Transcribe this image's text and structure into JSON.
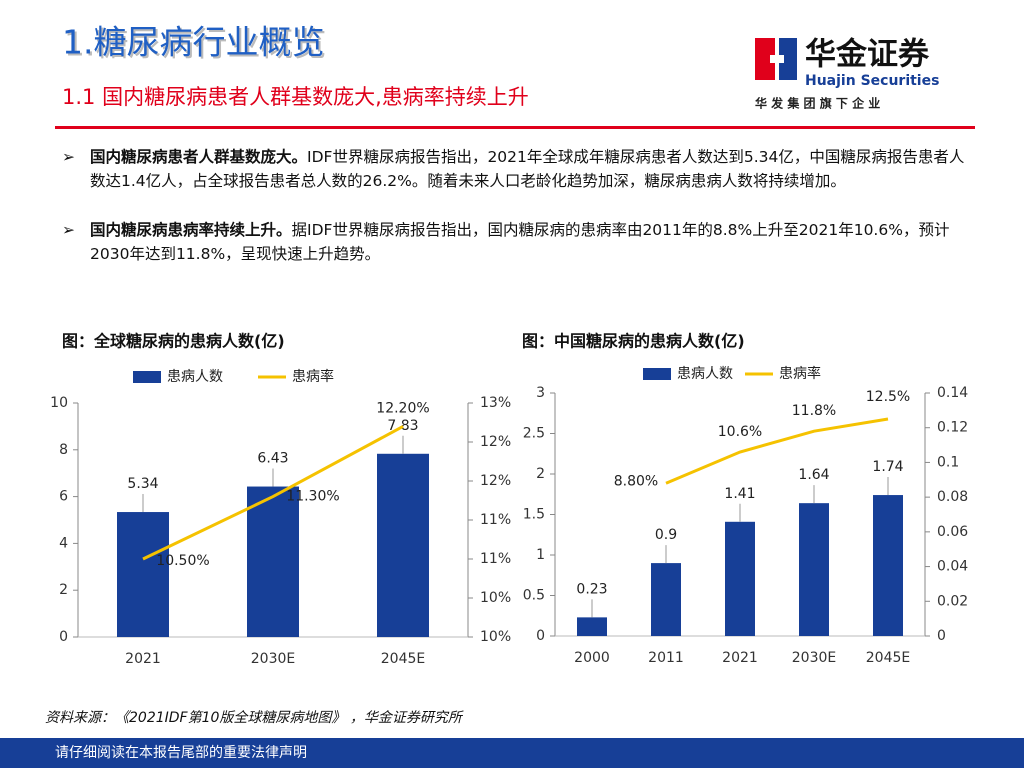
{
  "header": {
    "title": "1.糖尿病行业概览",
    "subtitle": "1.1 国内糖尿病患者人群基数庞大,患病率持续上升",
    "logo_name": "华金证券",
    "logo_en": "Huajin Securities",
    "logo_tagline": "华 发 集 团 旗 下 企 业"
  },
  "bullets": [
    {
      "lead": "国内糖尿病患者人群基数庞大。",
      "text": "IDF世界糖尿病报告指出，2021年全球成年糖尿病患者人数达到5.34亿，中国糖尿病报告患者人数达1.4亿人，占全球报告患者总人数的26.2%。随着未来人口老龄化趋势加深，糖尿病患病人数将持续增加。"
    },
    {
      "lead": "国内糖尿病患病率持续上升。",
      "text": "据IDF世界糖尿病报告指出，国内糖尿病的患病率由2011年的8.8%上升至2021年10.6%，预计2030年达到11.8%，呈现快速上升趋势。"
    }
  ],
  "chart_data": [
    {
      "type": "bar",
      "title": "图：全球糖尿病的患病人数(亿)",
      "categories": [
        "2021",
        "2030E",
        "2045E"
      ],
      "series": [
        {
          "name": "患病人数",
          "type": "bar",
          "color": "#173f97",
          "values": [
            5.34,
            6.43,
            7.83
          ]
        },
        {
          "name": "患病率",
          "type": "line",
          "axis": "y2",
          "color": "#f5c200",
          "values": [
            10.5,
            11.3,
            12.2
          ],
          "value_labels": [
            "10.50%",
            "11.30%",
            "12.20%"
          ]
        }
      ],
      "ylim": [
        0,
        10
      ],
      "yticks": [
        0,
        2,
        4,
        6,
        8,
        10
      ],
      "y2lim": [
        9.5,
        12.5
      ],
      "y2ticks": [
        {
          "value": 9.5,
          "label": "10%"
        },
        {
          "value": 10,
          "label": "10%"
        },
        {
          "value": 10.5,
          "label": "11%"
        },
        {
          "value": 11,
          "label": "11%"
        },
        {
          "value": 11.5,
          "label": "12%"
        },
        {
          "value": 12,
          "label": "12%"
        },
        {
          "value": 12.5,
          "label": "13%"
        }
      ]
    },
    {
      "type": "bar",
      "title": "图：中国糖尿病的患病人数(亿)",
      "categories": [
        "2000",
        "2011",
        "2021",
        "2030E",
        "2045E"
      ],
      "series": [
        {
          "name": "患病人数",
          "type": "bar",
          "color": "#173f97",
          "values": [
            0.23,
            0.9,
            1.41,
            1.64,
            1.74
          ]
        },
        {
          "name": "患病率",
          "type": "line",
          "axis": "y2",
          "color": "#f5c200",
          "values": [
            null,
            0.088,
            0.106,
            0.118,
            0.125
          ],
          "value_labels": [
            null,
            "8.80%",
            "10.6%",
            "11.8%",
            "12.5%"
          ]
        }
      ],
      "ylim": [
        0,
        3
      ],
      "yticks": [
        0,
        0.5,
        1,
        1.5,
        2,
        2.5,
        3
      ],
      "y2lim": [
        0,
        0.14
      ],
      "y2ticks": [
        0,
        0.02,
        0.04,
        0.06,
        0.08,
        0.1,
        0.12,
        0.14
      ]
    }
  ],
  "source": "资料来源：《2021IDF第10版全球糖尿病地图》 ，华金证券研究所",
  "footer": "请仔细阅读在本报告尾部的重要法律声明"
}
